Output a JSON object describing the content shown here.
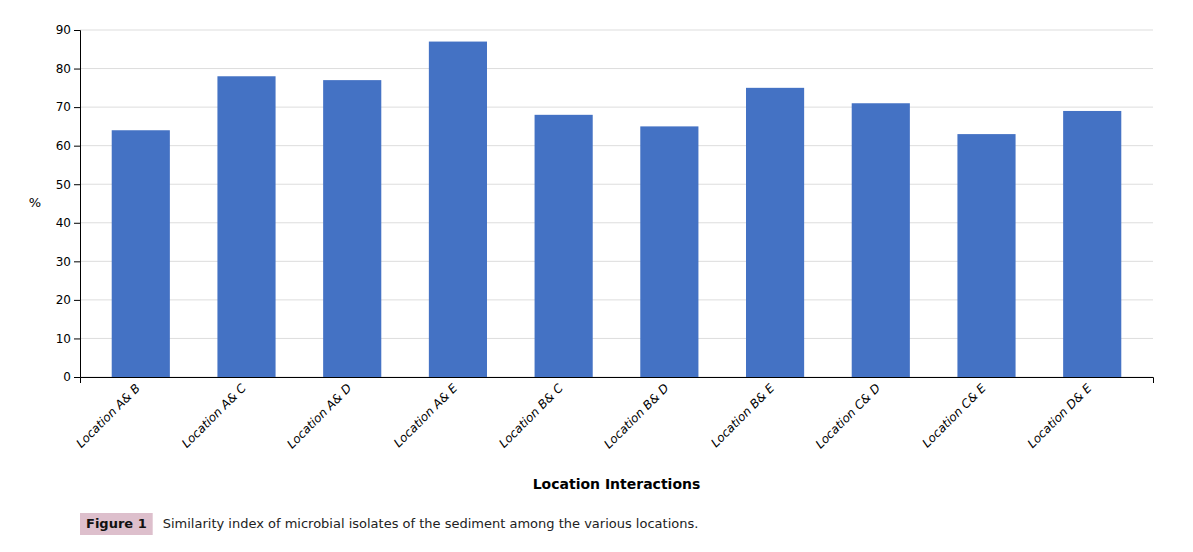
{
  "chart_data": {
    "type": "bar",
    "xlabel": "Location Interactions",
    "ylabel": "%",
    "categories": [
      "Location A& B",
      "Location A& C",
      "Location A& D",
      "Location A& E",
      "Location B& C",
      "Location B& D",
      "Location B& E",
      "Location C& D",
      "Location C& E",
      "Location D& E"
    ],
    "values": [
      64,
      78,
      77,
      87,
      68,
      65,
      75,
      71,
      63,
      69
    ],
    "color": "#4472C4",
    "ylim": [
      0,
      90
    ],
    "yticks": [
      0,
      10,
      20,
      30,
      40,
      50,
      60,
      70,
      80,
      90
    ],
    "grid": true,
    "annotations": [
      "Figure 1",
      "Similarity index of microbial isolates of the sediment among the various locations."
    ]
  }
}
